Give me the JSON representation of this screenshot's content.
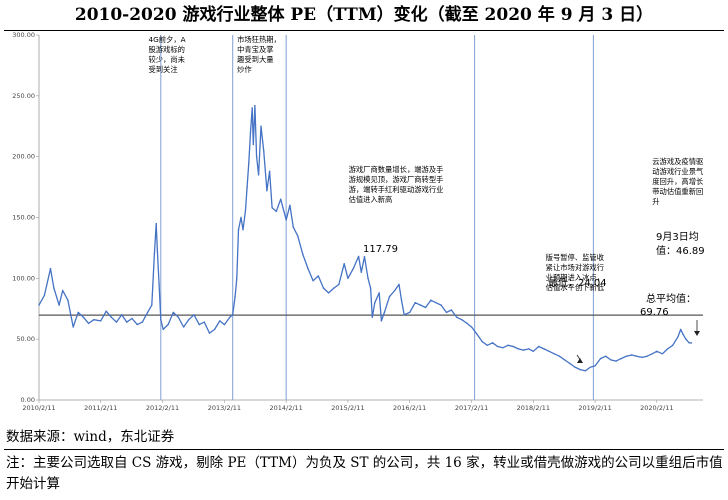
{
  "chart_data": {
    "type": "line",
    "title": "2010-2020 游戏行业整体 PE（TTM）变化（截至 2020 年 9 月 3 日）",
    "xlabel": "",
    "ylabel": "",
    "x_ticks": [
      "2010/2/11",
      "2011/2/11",
      "2012/2/11",
      "2013/2/11",
      "2014/2/11",
      "2015/2/11",
      "2016/2/11",
      "2017/2/11",
      "2018/2/11",
      "2019/2/11",
      "2020/2/11"
    ],
    "y_ticks": [
      "0.00",
      "50.00",
      "100.00",
      "150.00",
      "200.00",
      "250.00",
      "300.00"
    ],
    "xlim": [
      "2010-02-11",
      "2020-11-10"
    ],
    "ylim": [
      0,
      300
    ],
    "grid": false,
    "series": [
      {
        "color": "#4472c4",
        "points": [
          [
            "2010-02-11",
            78
          ],
          [
            "2010-03-15",
            86
          ],
          [
            "2010-04-20",
            108
          ],
          [
            "2010-05-10",
            92
          ],
          [
            "2010-06-10",
            78
          ],
          [
            "2010-07-01",
            90
          ],
          [
            "2010-08-01",
            82
          ],
          [
            "2010-09-01",
            60
          ],
          [
            "2010-10-01",
            72
          ],
          [
            "2010-11-01",
            68
          ],
          [
            "2010-12-01",
            63
          ],
          [
            "2011-01-01",
            66
          ],
          [
            "2011-02-11",
            65
          ],
          [
            "2011-03-15",
            73
          ],
          [
            "2011-04-15",
            68
          ],
          [
            "2011-05-15",
            64
          ],
          [
            "2011-06-15",
            70
          ],
          [
            "2011-07-15",
            64
          ],
          [
            "2011-08-15",
            67
          ],
          [
            "2011-09-15",
            62
          ],
          [
            "2011-10-15",
            64
          ],
          [
            "2011-11-15",
            72
          ],
          [
            "2011-12-10",
            78
          ],
          [
            "2011-12-25",
            120
          ],
          [
            "2012-01-05",
            145
          ],
          [
            "2012-01-12",
            122
          ],
          [
            "2012-01-22",
            95
          ],
          [
            "2012-02-01",
            66
          ],
          [
            "2012-02-15",
            58
          ],
          [
            "2012-03-15",
            62
          ],
          [
            "2012-04-15",
            72
          ],
          [
            "2012-05-15",
            68
          ],
          [
            "2012-06-15",
            60
          ],
          [
            "2012-07-15",
            66
          ],
          [
            "2012-08-15",
            70
          ],
          [
            "2012-09-15",
            62
          ],
          [
            "2012-10-15",
            64
          ],
          [
            "2012-11-15",
            55
          ],
          [
            "2012-12-15",
            58
          ],
          [
            "2013-01-15",
            65
          ],
          [
            "2013-02-11",
            62
          ],
          [
            "2013-03-15",
            68
          ],
          [
            "2013-04-01",
            70
          ],
          [
            "2013-04-15",
            85
          ],
          [
            "2013-04-25",
            100
          ],
          [
            "2013-05-05",
            140
          ],
          [
            "2013-05-20",
            150
          ],
          [
            "2013-06-01",
            140
          ],
          [
            "2013-06-15",
            155
          ],
          [
            "2013-06-25",
            175
          ],
          [
            "2013-07-05",
            195
          ],
          [
            "2013-07-15",
            220
          ],
          [
            "2013-07-25",
            240
          ],
          [
            "2013-08-01",
            210
          ],
          [
            "2013-08-10",
            242
          ],
          [
            "2013-08-20",
            200
          ],
          [
            "2013-09-01",
            185
          ],
          [
            "2013-09-15",
            225
          ],
          [
            "2013-10-01",
            205
          ],
          [
            "2013-10-20",
            172
          ],
          [
            "2013-11-05",
            188
          ],
          [
            "2013-11-20",
            158
          ],
          [
            "2013-12-15",
            155
          ],
          [
            "2014-01-10",
            165
          ],
          [
            "2014-02-11",
            148
          ],
          [
            "2014-03-05",
            160
          ],
          [
            "2014-03-25",
            142
          ],
          [
            "2014-04-20",
            135
          ],
          [
            "2014-05-20",
            120
          ],
          [
            "2014-06-20",
            108
          ],
          [
            "2014-07-20",
            98
          ],
          [
            "2014-08-20",
            102
          ],
          [
            "2014-09-20",
            92
          ],
          [
            "2014-10-20",
            88
          ],
          [
            "2014-11-20",
            92
          ],
          [
            "2014-12-20",
            95
          ],
          [
            "2015-01-20",
            112
          ],
          [
            "2015-02-11",
            100
          ],
          [
            "2015-03-15",
            108
          ],
          [
            "2015-04-15",
            118
          ],
          [
            "2015-05-01",
            105
          ],
          [
            "2015-05-20",
            117.79
          ],
          [
            "2015-06-10",
            100
          ],
          [
            "2015-06-25",
            92
          ],
          [
            "2015-07-05",
            68
          ],
          [
            "2015-07-20",
            80
          ],
          [
            "2015-08-15",
            88
          ],
          [
            "2015-08-28",
            65
          ],
          [
            "2015-09-15",
            72
          ],
          [
            "2015-10-15",
            85
          ],
          [
            "2015-11-15",
            90
          ],
          [
            "2015-12-10",
            95
          ],
          [
            "2015-12-25",
            82
          ],
          [
            "2016-01-10",
            70
          ],
          [
            "2016-02-11",
            72
          ],
          [
            "2016-03-15",
            80
          ],
          [
            "2016-04-15",
            78
          ],
          [
            "2016-05-15",
            76
          ],
          [
            "2016-06-15",
            82
          ],
          [
            "2016-07-15",
            80
          ],
          [
            "2016-08-15",
            78
          ],
          [
            "2016-09-15",
            72
          ],
          [
            "2016-10-15",
            74
          ],
          [
            "2016-11-15",
            68
          ],
          [
            "2016-12-15",
            66
          ],
          [
            "2017-01-15",
            63
          ],
          [
            "2017-02-11",
            60
          ],
          [
            "2017-03-15",
            54
          ],
          [
            "2017-04-15",
            48
          ],
          [
            "2017-05-15",
            45
          ],
          [
            "2017-06-15",
            47
          ],
          [
            "2017-07-15",
            44
          ],
          [
            "2017-08-15",
            43
          ],
          [
            "2017-09-15",
            45
          ],
          [
            "2017-10-15",
            44
          ],
          [
            "2017-11-15",
            42
          ],
          [
            "2017-12-15",
            41
          ],
          [
            "2018-01-15",
            42
          ],
          [
            "2018-02-11",
            40
          ],
          [
            "2018-03-15",
            44
          ],
          [
            "2018-04-15",
            42
          ],
          [
            "2018-05-15",
            40
          ],
          [
            "2018-06-15",
            38
          ],
          [
            "2018-07-15",
            36
          ],
          [
            "2018-08-15",
            33
          ],
          [
            "2018-09-15",
            30
          ],
          [
            "2018-10-15",
            27
          ],
          [
            "2018-11-15",
            25
          ],
          [
            "2018-12-15",
            24.04
          ],
          [
            "2019-01-15",
            27
          ],
          [
            "2019-02-11",
            28
          ],
          [
            "2019-03-15",
            34
          ],
          [
            "2019-04-15",
            36
          ],
          [
            "2019-05-15",
            33
          ],
          [
            "2019-06-15",
            32
          ],
          [
            "2019-07-15",
            34
          ],
          [
            "2019-08-15",
            36
          ],
          [
            "2019-09-15",
            37
          ],
          [
            "2019-10-15",
            36
          ],
          [
            "2019-11-15",
            35
          ],
          [
            "2019-12-15",
            36
          ],
          [
            "2020-01-15",
            38
          ],
          [
            "2020-02-11",
            40
          ],
          [
            "2020-03-15",
            38
          ],
          [
            "2020-04-15",
            42
          ],
          [
            "2020-05-15",
            45
          ],
          [
            "2020-06-15",
            52
          ],
          [
            "2020-07-01",
            58
          ],
          [
            "2020-07-15",
            54
          ],
          [
            "2020-08-01",
            50
          ],
          [
            "2020-08-20",
            47
          ],
          [
            "2020-09-03",
            46.89
          ]
        ]
      }
    ],
    "average_line": {
      "value": 69.76,
      "color": "#555555"
    },
    "event_lines": [
      "2012-02-01",
      "2013-04-01",
      "2014-02-11",
      "2017-03-01",
      "2019-02-01"
    ],
    "annotations": {
      "a1": [
        "4G前夕，A",
        "股游戏标的",
        "较少，尚未",
        "受到关注"
      ],
      "a2": [
        "市场狂热期，",
        "中青宝及掌",
        "趣受到大量",
        "炒作"
      ],
      "a3": [
        "游戏厂商数量增长，端游及手",
        "游规模见顶，游戏厂商转型手",
        "游，端转手红利驱动游戏行业",
        "估值进入新高"
      ],
      "a4": [
        "版号暂停、监管收",
        "紧让市场对游戏行",
        "业预期进入冰点，",
        "估值水平创下新低"
      ],
      "a5": [
        "云游戏及疫情驱",
        "动游戏行业景气",
        "度回升，高增长",
        "带动估值重新回",
        "升"
      ],
      "peak_label": "117.79",
      "min_label": "最低：24.04",
      "avg_label_1": "总平均值：",
      "avg_label_2": "69.76",
      "latest_label_1": "9月3日均",
      "latest_label_2": "值：46.89"
    }
  },
  "footer": {
    "source": "数据来源：wind，东北证券",
    "note": "注：主要公司选取自 CS 游戏，剔除 PE（TTM）为负及 ST 的公司，共 16 家，转业或借壳做游戏的公司以重组后市值开始计算"
  }
}
